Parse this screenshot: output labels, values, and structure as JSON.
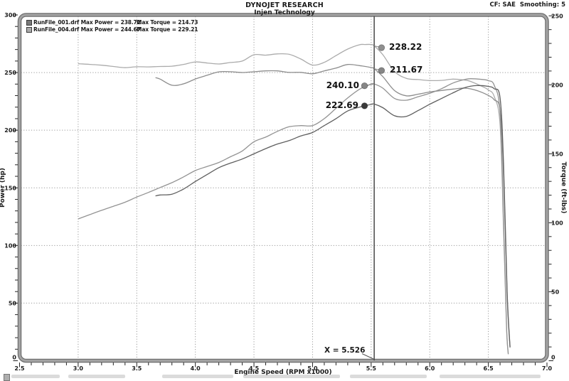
{
  "header": {
    "title": "DYNOJET RESEARCH",
    "subtitle": "Injen Technology",
    "correction": "CF: SAE  Smoothing: 5"
  },
  "legend": [
    {
      "file": "RunFile_001.drf",
      "max_power": "Max Power = 238.72",
      "max_torque": "Max Torque = 214.73",
      "swatch_color": "#787878"
    },
    {
      "file": "RunFile_004.drf",
      "max_power": "Max Power = 244.67",
      "max_torque": "Max Torque = 229.21",
      "swatch_color": "#ababab"
    }
  ],
  "chart_data": {
    "type": "line",
    "title": "DYNOJET RESEARCH",
    "subtitle": "Injen Technology",
    "x_axis": {
      "label": "Engine Speed (RPM x1000)",
      "min": 2.5,
      "max": 7.0,
      "major_tick": 0.5,
      "minor_tick": 0.1
    },
    "power_axis": {
      "label": "Power (hp)",
      "min": 0,
      "max": 300,
      "major_tick": 50,
      "minor_tick": 10
    },
    "torque_axis": {
      "label": "Torque (ft-lbs)",
      "min": 0,
      "max": 250,
      "major_tick": 50,
      "minor_tick": 10
    },
    "grid": {
      "vertical_at_rpm": [
        3.0,
        3.5,
        4.0,
        4.5,
        5.0,
        5.5,
        6.0,
        6.5
      ],
      "horizontal_at_power": [
        50,
        100,
        150,
        200,
        250
      ],
      "style": "dotted"
    },
    "cursor": {
      "x": 5.526,
      "label": "X = 5.526"
    },
    "markers": [
      {
        "label": "228.22",
        "value": 228.22,
        "axis": "torque",
        "series": "RunFile_004.drf",
        "side": "right",
        "color": "#8f8f8f"
      },
      {
        "label": "211.67",
        "value": 211.67,
        "axis": "torque",
        "series": "RunFile_001.drf",
        "side": "right",
        "color": "#868686"
      },
      {
        "label": "240.10",
        "value": 240.1,
        "axis": "power",
        "series": "RunFile_004.drf",
        "side": "left",
        "color": "#868686"
      },
      {
        "label": "222.69",
        "value": 222.69,
        "axis": "power",
        "series": "RunFile_001.drf",
        "side": "left",
        "color": "#3a3a3a"
      }
    ],
    "series": [
      {
        "name": "RunFile_004.drf",
        "power_color": "#939393",
        "torque_color": "#ababab",
        "power": [
          [
            3.0,
            123.0
          ],
          [
            3.1,
            126.8
          ],
          [
            3.2,
            130.5
          ],
          [
            3.3,
            134.0
          ],
          [
            3.4,
            137.5
          ],
          [
            3.5,
            142.0
          ],
          [
            3.6,
            146.0
          ],
          [
            3.7,
            150.3
          ],
          [
            3.8,
            154.5
          ],
          [
            3.9,
            159.5
          ],
          [
            4.0,
            165.0
          ],
          [
            4.1,
            168.5
          ],
          [
            4.2,
            172.0
          ],
          [
            4.3,
            177.0
          ],
          [
            4.4,
            182.0
          ],
          [
            4.5,
            190.0
          ],
          [
            4.6,
            194.0
          ],
          [
            4.7,
            199.0
          ],
          [
            4.8,
            203.0
          ],
          [
            4.9,
            204.0
          ],
          [
            5.0,
            204.0
          ],
          [
            5.1,
            210.0
          ],
          [
            5.2,
            219.0
          ],
          [
            5.3,
            228.0
          ],
          [
            5.4,
            235.5
          ],
          [
            5.45,
            237.8
          ],
          [
            5.5,
            240.0
          ],
          [
            5.526,
            240.1
          ],
          [
            5.6,
            236.5
          ],
          [
            5.7,
            227.5
          ],
          [
            5.8,
            226.0
          ],
          [
            5.9,
            229.0
          ],
          [
            6.0,
            232.0
          ],
          [
            6.1,
            236.0
          ],
          [
            6.2,
            241.0
          ],
          [
            6.3,
            244.0
          ],
          [
            6.35,
            244.67
          ],
          [
            6.45,
            244.0
          ],
          [
            6.5,
            243.0
          ],
          [
            6.55,
            239.0
          ],
          [
            6.6,
            215.0
          ],
          [
            6.63,
            120.0
          ],
          [
            6.655,
            30.0
          ],
          [
            6.67,
            6.0
          ]
        ],
        "torque": [
          [
            3.0,
            215.3
          ],
          [
            3.1,
            214.8
          ],
          [
            3.2,
            214.2
          ],
          [
            3.3,
            213.3
          ],
          [
            3.4,
            212.4
          ],
          [
            3.5,
            213.1
          ],
          [
            3.6,
            213.0
          ],
          [
            3.7,
            213.3
          ],
          [
            3.8,
            213.5
          ],
          [
            3.9,
            214.8
          ],
          [
            4.0,
            216.6
          ],
          [
            4.1,
            215.8
          ],
          [
            4.2,
            215.1
          ],
          [
            4.3,
            216.2
          ],
          [
            4.4,
            217.2
          ],
          [
            4.5,
            221.8
          ],
          [
            4.6,
            221.5
          ],
          [
            4.7,
            222.4
          ],
          [
            4.8,
            222.1
          ],
          [
            4.9,
            218.7
          ],
          [
            5.0,
            214.3
          ],
          [
            5.1,
            216.3
          ],
          [
            5.2,
            221.2
          ],
          [
            5.3,
            225.9
          ],
          [
            5.4,
            229.0
          ],
          [
            5.45,
            229.21
          ],
          [
            5.5,
            229.2
          ],
          [
            5.526,
            228.22
          ],
          [
            5.6,
            221.8
          ],
          [
            5.7,
            209.6
          ],
          [
            5.8,
            204.7
          ],
          [
            5.9,
            203.8
          ],
          [
            6.0,
            203.1
          ],
          [
            6.1,
            203.2
          ],
          [
            6.2,
            204.1
          ],
          [
            6.3,
            203.4
          ],
          [
            6.35,
            202.4
          ],
          [
            6.45,
            198.7
          ],
          [
            6.5,
            196.3
          ],
          [
            6.55,
            191.6
          ],
          [
            6.6,
            171.1
          ],
          [
            6.63,
            95.1
          ],
          [
            6.655,
            23.7
          ],
          [
            6.67,
            4.7
          ]
        ]
      },
      {
        "name": "RunFile_001.drf",
        "power_color": "#5f5f5f",
        "torque_color": "#8d8d8d",
        "power": [
          [
            3.66,
            143.0
          ],
          [
            3.7,
            143.8
          ],
          [
            3.8,
            144.5
          ],
          [
            3.9,
            149.0
          ],
          [
            4.0,
            155.5
          ],
          [
            4.1,
            161.5
          ],
          [
            4.2,
            167.5
          ],
          [
            4.3,
            171.5
          ],
          [
            4.4,
            175.0
          ],
          [
            4.5,
            179.5
          ],
          [
            4.6,
            184.0
          ],
          [
            4.7,
            188.0
          ],
          [
            4.8,
            191.0
          ],
          [
            4.9,
            195.0
          ],
          [
            5.0,
            198.0
          ],
          [
            5.1,
            204.0
          ],
          [
            5.2,
            210.0
          ],
          [
            5.3,
            216.7
          ],
          [
            5.4,
            220.0
          ],
          [
            5.5,
            222.5
          ],
          [
            5.526,
            222.69
          ],
          [
            5.6,
            219.5
          ],
          [
            5.7,
            212.5
          ],
          [
            5.8,
            212.0
          ],
          [
            5.9,
            217.0
          ],
          [
            6.0,
            222.5
          ],
          [
            6.1,
            227.5
          ],
          [
            6.2,
            232.5
          ],
          [
            6.3,
            237.0
          ],
          [
            6.4,
            238.72
          ],
          [
            6.5,
            238.0
          ],
          [
            6.55,
            236.0
          ],
          [
            6.6,
            228.0
          ],
          [
            6.63,
            170.0
          ],
          [
            6.66,
            60.0
          ],
          [
            6.685,
            12.0
          ]
        ],
        "torque": [
          [
            3.66,
            205.2
          ],
          [
            3.7,
            204.1
          ],
          [
            3.8,
            199.7
          ],
          [
            3.9,
            200.7
          ],
          [
            4.0,
            204.2
          ],
          [
            4.1,
            206.9
          ],
          [
            4.2,
            209.4
          ],
          [
            4.3,
            209.5
          ],
          [
            4.4,
            208.9
          ],
          [
            4.5,
            209.5
          ],
          [
            4.6,
            210.1
          ],
          [
            4.7,
            210.1
          ],
          [
            4.8,
            209.0
          ],
          [
            4.9,
            209.0
          ],
          [
            5.0,
            208.0
          ],
          [
            5.1,
            210.1
          ],
          [
            5.2,
            212.1
          ],
          [
            5.3,
            214.73
          ],
          [
            5.4,
            213.9
          ],
          [
            5.5,
            212.5
          ],
          [
            5.526,
            211.67
          ],
          [
            5.6,
            205.9
          ],
          [
            5.7,
            195.8
          ],
          [
            5.8,
            192.0
          ],
          [
            5.9,
            193.2
          ],
          [
            6.0,
            194.8
          ],
          [
            6.1,
            195.9
          ],
          [
            6.2,
            196.9
          ],
          [
            6.3,
            197.6
          ],
          [
            6.4,
            195.9
          ],
          [
            6.5,
            192.3
          ],
          [
            6.55,
            189.2
          ],
          [
            6.6,
            181.5
          ],
          [
            6.63,
            134.7
          ],
          [
            6.66,
            47.3
          ],
          [
            6.685,
            9.4
          ]
        ]
      }
    ]
  }
}
